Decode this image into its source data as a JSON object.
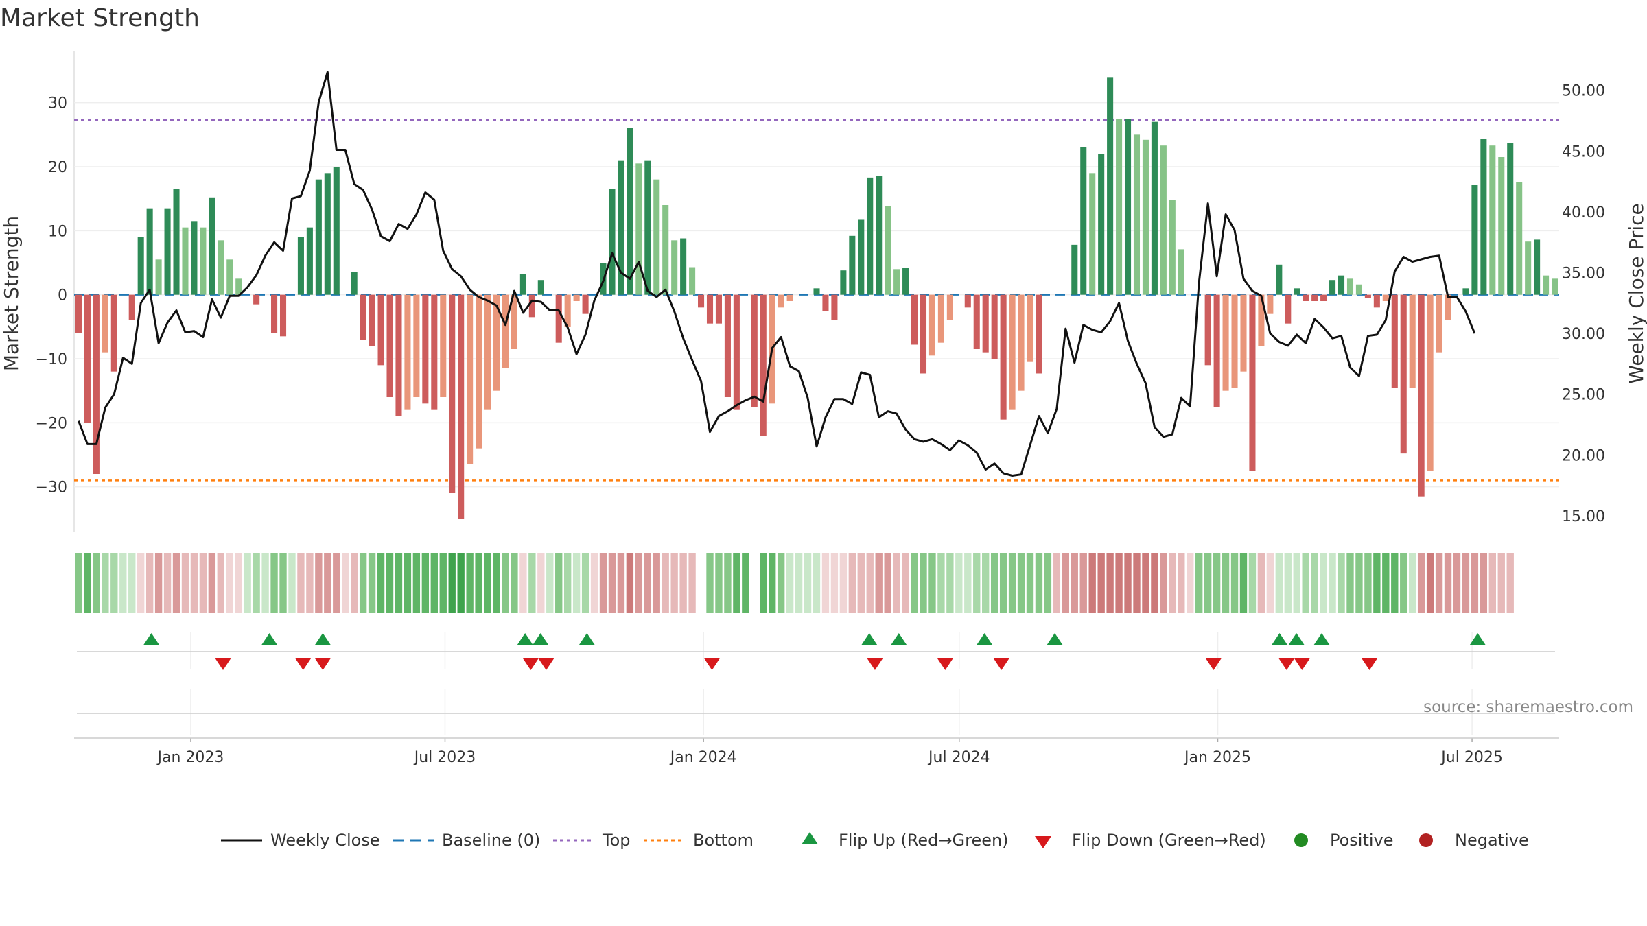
{
  "title": "Market Strength",
  "source": "source: sharemaestro.com",
  "colors": {
    "green_dark": "#2e8b57",
    "green_light": "#86c387",
    "red_dark": "#cd5c5c",
    "red_light": "#e9967a",
    "line": "#111111",
    "baseline": "#1f77b4",
    "top": "#9467bd",
    "bottom": "#ff7f0e",
    "flip_up": "#1a9641",
    "flip_down": "#d7191c",
    "positive": "#228b22",
    "negative": "#b22222"
  },
  "chart_data": {
    "type": "bar",
    "title": "Market Strength",
    "ylabel": "Market Strength",
    "y2label": "Weekly Close Price",
    "ylim": [
      -37,
      38
    ],
    "y2lim": [
      13.7,
      53.2
    ],
    "yticks": [
      30,
      20,
      10,
      0,
      -10,
      -20,
      -30
    ],
    "y2ticks": [
      50,
      45,
      40,
      35,
      30,
      25,
      20,
      15
    ],
    "y2tick_labels": [
      "50.00",
      "45.00",
      "40.00",
      "35.00",
      "30.00",
      "25.00",
      "20.00",
      "15.00"
    ],
    "top_line": 27.3,
    "bottom_line": -29,
    "baseline": 0,
    "x_start": "2022-10-10",
    "x_end": "2025-09-01",
    "xticks": [
      {
        "date": "2023-01-01",
        "label": "Jan 2023"
      },
      {
        "date": "2023-07-01",
        "label": "Jul 2023"
      },
      {
        "date": "2024-01-01",
        "label": "Jan 2024"
      },
      {
        "date": "2024-07-01",
        "label": "Jul 2024"
      },
      {
        "date": "2025-01-01",
        "label": "Jan 2025"
      },
      {
        "date": "2025-07-01",
        "label": "Jul 2025"
      }
    ],
    "strength": [
      -6,
      -20,
      -28,
      -9,
      -12,
      0,
      -4,
      9,
      13.5,
      5.5,
      13.5,
      16.5,
      10.5,
      11.5,
      10.5,
      15.2,
      8.5,
      5.5,
      2.5,
      0,
      -1.5,
      0,
      -6,
      -6.5,
      0,
      9,
      10.5,
      18,
      19,
      20,
      0,
      3.5,
      -7,
      -8,
      -11,
      -16,
      -19,
      -18,
      -16,
      -17,
      -18,
      -16,
      -31,
      -35,
      -26.5,
      -24,
      -18,
      -15,
      -11.5,
      -8.5,
      3.2,
      -3.5,
      2.3,
      0,
      -7.5,
      -5,
      -1,
      -3,
      0,
      5,
      16.5,
      21,
      26,
      20.5,
      21,
      18,
      14,
      8.5,
      8.8,
      4.3,
      -2,
      -4.5,
      -4.5,
      -16,
      -18,
      0,
      -17.5,
      -22,
      -17,
      -2,
      -1,
      0,
      0,
      1,
      -2.5,
      -4,
      3.8,
      9.2,
      11.7,
      18.3,
      18.5,
      13.8,
      4,
      4.2,
      -7.8,
      -12.3,
      -9.5,
      -7.5,
      -4,
      0,
      -2,
      -8.5,
      -9,
      -10,
      -19.5,
      -18,
      -15,
      -10.5,
      -12.3,
      0,
      0,
      0,
      7.8,
      23,
      19,
      22,
      34,
      27.5,
      27.5,
      25,
      24.2,
      27,
      23.3,
      14.8,
      7.1,
      0,
      0,
      -11,
      -17.5,
      -15,
      -14.5,
      -12,
      -27.5,
      -8,
      -3,
      4.7,
      -4.5,
      1,
      -1,
      -1,
      -1,
      2.3,
      3,
      2.5,
      1.6,
      -0.5,
      -2,
      -1,
      -14.5,
      -24.8,
      -14.5,
      -31.5,
      -27.5,
      -9,
      -4,
      0,
      1,
      17.2,
      24.3,
      23.3,
      21.5,
      23.7,
      17.6,
      8.3,
      8.6,
      3,
      2.5
    ],
    "close": [
      22.8,
      20.9,
      20.9,
      23.9,
      25.0,
      28.0,
      27.5,
      32.5,
      33.6,
      29.2,
      30.9,
      31.9,
      30.1,
      30.2,
      29.7,
      32.8,
      31.3,
      33.1,
      33.1,
      33.8,
      34.8,
      36.4,
      37.5,
      36.8,
      41.1,
      41.3,
      43.4,
      49.0,
      51.5,
      45.1,
      45.1,
      42.3,
      41.8,
      40.2,
      38.0,
      37.6,
      39.0,
      38.6,
      39.8,
      41.6,
      41.0,
      36.8,
      35.3,
      34.7,
      33.6,
      33.0,
      32.7,
      32.3,
      30.7,
      33.5,
      31.7,
      32.7,
      32.6,
      31.9,
      31.9,
      30.5,
      28.3,
      29.9,
      32.7,
      34.3,
      36.6,
      35.0,
      34.5,
      35.9,
      33.5,
      33.0,
      33.6,
      31.8,
      29.6,
      27.8,
      26.1,
      21.9,
      23.2,
      23.6,
      24.1,
      24.5,
      24.8,
      24.4,
      28.8,
      29.7,
      27.3,
      26.9,
      24.7,
      20.7,
      23.1,
      24.6,
      24.6,
      24.2,
      26.8,
      26.6,
      23.1,
      23.6,
      23.4,
      22.1,
      21.3,
      21.1,
      21.3,
      20.9,
      20.4,
      21.2,
      20.8,
      20.2,
      18.8,
      19.3,
      18.5,
      18.3,
      18.4,
      20.8,
      23.2,
      21.8,
      23.8,
      30.4,
      27.6,
      30.7,
      30.3,
      30.1,
      31.0,
      32.5,
      29.4,
      27.5,
      25.9,
      22.3,
      21.5,
      21.7,
      24.7,
      24.0,
      34.2,
      40.7,
      34.7,
      39.8,
      38.5,
      34.5,
      33.5,
      33.1,
      30.0,
      29.3,
      29.0,
      29.9,
      29.2,
      31.2,
      30.5,
      29.6,
      29.8,
      27.2,
      26.5,
      29.8,
      29.9,
      31.1,
      35.1,
      36.3,
      35.9,
      36.1,
      36.3,
      36.4,
      33.0,
      33.0,
      31.8,
      30.0
    ],
    "state_strip": [
      3,
      4,
      3,
      2,
      2,
      1,
      1,
      -1,
      -2,
      -3,
      -2,
      -3,
      -2,
      -2,
      -2,
      -3,
      -2,
      -1,
      -1,
      1,
      2,
      1,
      3,
      3,
      1,
      -2,
      -2,
      -3,
      -3,
      -3,
      -1,
      -2,
      3,
      3,
      4,
      4,
      4,
      4,
      4,
      4,
      4,
      4,
      5,
      5,
      4,
      4,
      4,
      4,
      3,
      3,
      -1,
      2,
      -1,
      1,
      3,
      2,
      1,
      2,
      -1,
      -3,
      -3,
      -3,
      -4,
      -3,
      -3,
      -3,
      -2,
      -2,
      -2,
      -2,
      null,
      3,
      3,
      3,
      4,
      4,
      null,
      4,
      4,
      3,
      1,
      1,
      1,
      1,
      -1,
      -1,
      -1,
      -2,
      -2,
      -2,
      -3,
      -3,
      -2,
      -2,
      3,
      3,
      3,
      2,
      2,
      1,
      1,
      2,
      2,
      3,
      3,
      3,
      3,
      3,
      3,
      3,
      -2,
      -3,
      -3,
      -3,
      -4,
      -4,
      -4,
      -4,
      -4,
      -4,
      -4,
      -4,
      -3,
      -2,
      -2,
      -1,
      3,
      3,
      3,
      3,
      3,
      4,
      2,
      -2,
      -1,
      1,
      1,
      1,
      2,
      2,
      1,
      1,
      2,
      3,
      3,
      3,
      4,
      4,
      4,
      3,
      1,
      -3,
      -4,
      -3,
      -3,
      -3,
      -3,
      -3,
      -3,
      -2,
      -2,
      -2
    ],
    "flip_up": [
      "2022-12-04",
      "2023-02-26",
      "2023-04-05",
      "2023-08-27",
      "2023-09-07",
      "2023-10-10",
      "2024-04-28",
      "2024-05-19",
      "2024-07-19",
      "2024-09-07",
      "2025-02-14",
      "2025-02-26",
      "2025-03-16",
      "2025-07-05"
    ],
    "flip_down": [
      "2023-01-24",
      "2023-03-22",
      "2023-04-05",
      "2023-08-31",
      "2023-09-11",
      "2024-01-07",
      "2024-05-02",
      "2024-06-21",
      "2024-07-31",
      "2024-12-29",
      "2025-02-19",
      "2025-03-02",
      "2025-04-19"
    ],
    "positive": [],
    "negative": [],
    "legend": [
      {
        "key": "line",
        "label": "Weekly Close"
      },
      {
        "key": "baseline",
        "label": "Baseline (0)"
      },
      {
        "key": "top",
        "label": "Top"
      },
      {
        "key": "bottom",
        "label": "Bottom"
      },
      {
        "key": "flip_up",
        "label": "Flip Up (Red→Green)"
      },
      {
        "key": "flip_down",
        "label": "Flip Down (Green→Red)"
      },
      {
        "key": "positive",
        "label": "Positive"
      },
      {
        "key": "negative",
        "label": "Negative"
      }
    ]
  }
}
